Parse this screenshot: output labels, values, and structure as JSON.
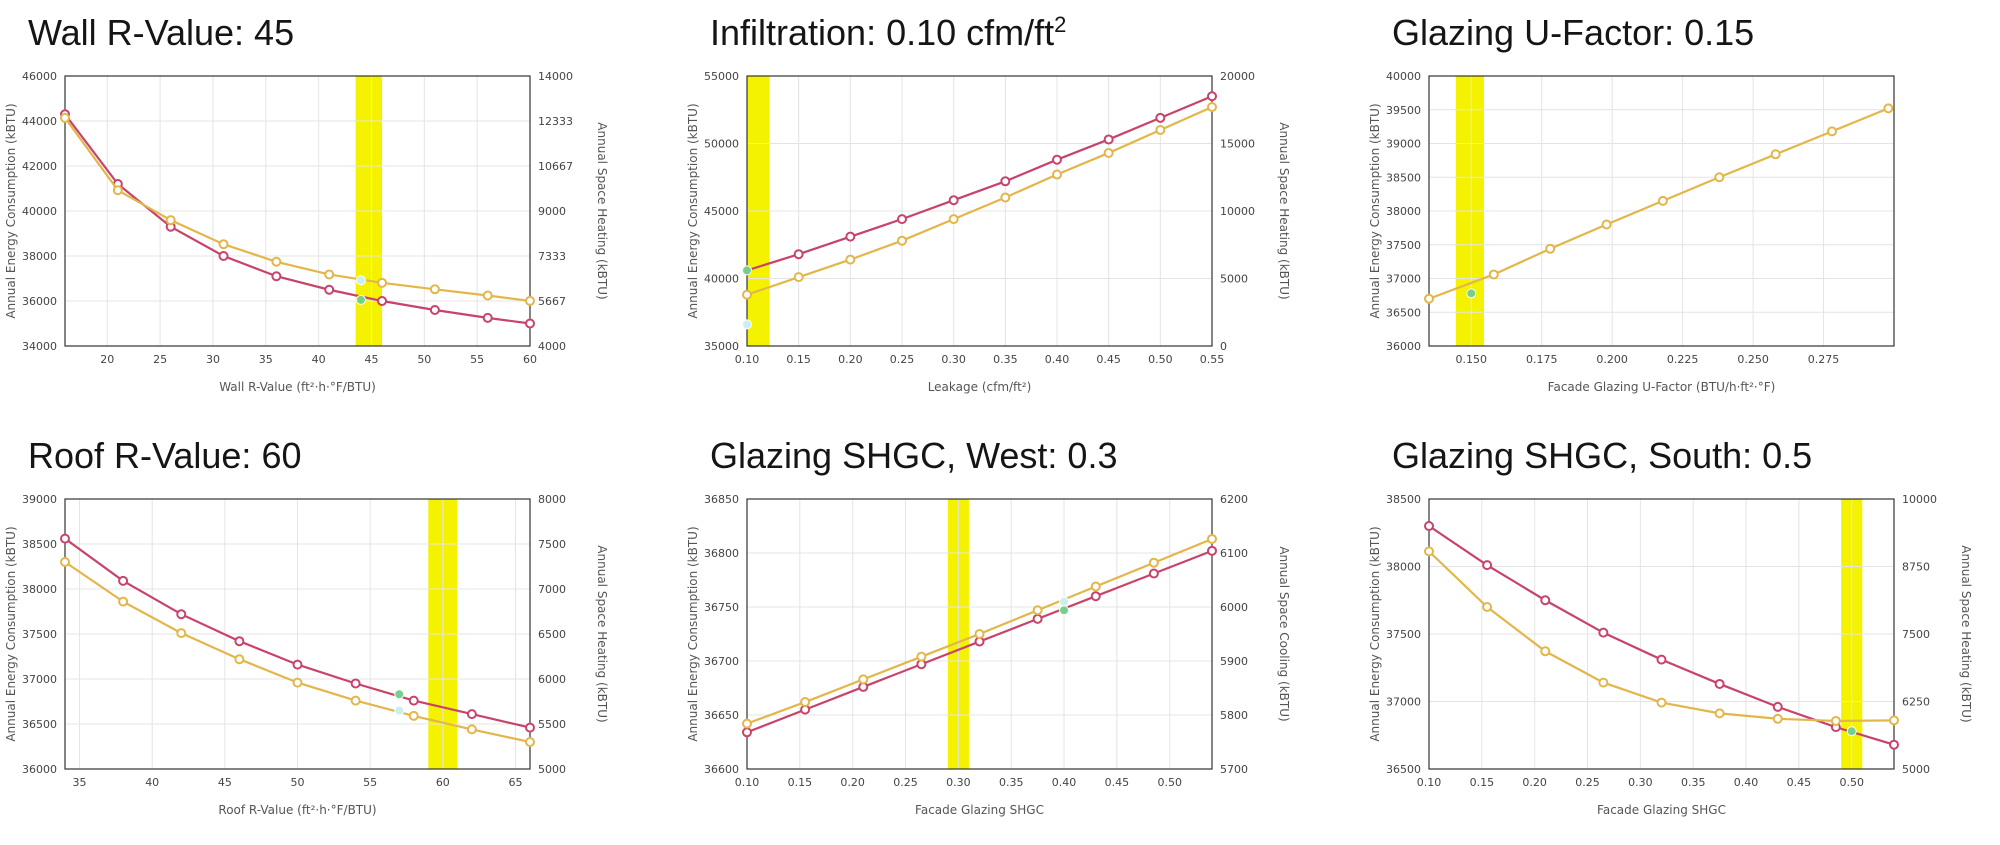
{
  "chart_data": [
    {
      "type": "line",
      "title": "Wall R-Value: 45",
      "xlabel": "Wall R-Value (ft²·h·°F/BTU)",
      "ylabel": "Annual Energy Consumption (kBTU)",
      "y2label": "Annual Space Heating (kBTU)",
      "xlim": [
        16,
        60
      ],
      "ylim": [
        34000,
        46000
      ],
      "y2lim": [
        4000,
        14000
      ],
      "x_ticks": [
        "20",
        "25",
        "30",
        "35",
        "40",
        "45",
        "50",
        "55",
        "60"
      ],
      "y_ticks": [
        "34000",
        "36000",
        "38000",
        "40000",
        "42000",
        "44000",
        "46000"
      ],
      "y2_ticks": [
        "4000",
        "5667",
        "7333",
        "9000",
        "10667",
        "12333",
        "14000"
      ],
      "highlight": [
        43.5,
        46
      ],
      "x": [
        16,
        21,
        26,
        31,
        36,
        41,
        46,
        51,
        56,
        60
      ],
      "series": [
        {
          "axis": "left",
          "color": "#c8436a",
          "values": [
            44300,
            41200,
            39300,
            38000,
            37100,
            36500,
            36000,
            35600,
            35250,
            35000
          ]
        },
        {
          "axis": "right",
          "color": "#e3b64a",
          "values": [
            12450,
            9770,
            8660,
            7770,
            7120,
            6650,
            6340,
            6100,
            5870,
            5670
          ]
        }
      ],
      "markers": [
        {
          "axis": "left",
          "x": 44,
          "y": 36050,
          "color": "#76d08a"
        },
        {
          "axis": "right",
          "x": 44,
          "y": 6430,
          "color": "#c9efef"
        }
      ]
    },
    {
      "type": "line",
      "title": "Infiltration: 0.10 cfm/ft",
      "title_sup": "2",
      "xlabel": "Leakage (cfm/ft²)",
      "ylabel": "Annual Energy Consumption (kBTU)",
      "y2label": "Annual Space Heating (kBTU)",
      "xlim": [
        0.1,
        0.55
      ],
      "ylim": [
        35000,
        55000
      ],
      "y2lim": [
        0,
        20000
      ],
      "x_ticks": [
        "0.10",
        "0.15",
        "0.20",
        "0.25",
        "0.30",
        "0.35",
        "0.40",
        "0.45",
        "0.50",
        "0.55"
      ],
      "y_ticks": [
        "35000",
        "40000",
        "45000",
        "50000",
        "55000"
      ],
      "y2_ticks": [
        "0",
        "5000",
        "10000",
        "15000",
        "20000"
      ],
      "highlight": [
        0.1,
        0.122
      ],
      "x": [
        0.1,
        0.15,
        0.2,
        0.25,
        0.3,
        0.35,
        0.4,
        0.45,
        0.5,
        0.55
      ],
      "series": [
        {
          "axis": "left",
          "color": "#c8436a",
          "values": [
            40600,
            41800,
            43100,
            44400,
            45800,
            47200,
            48800,
            50300,
            51900,
            53500
          ]
        },
        {
          "axis": "right",
          "color": "#e3b64a",
          "values": [
            3800,
            5100,
            6400,
            7800,
            9400,
            11000,
            12700,
            14300,
            16000,
            17700
          ]
        }
      ],
      "markers": [
        {
          "axis": "left",
          "x": 0.1,
          "y": 40600,
          "color": "#76d08a"
        },
        {
          "axis": "left",
          "x": 0.1,
          "y": 36600,
          "color": "#c9efef"
        }
      ]
    },
    {
      "type": "line",
      "title": "Glazing U-Factor: 0.15",
      "xlabel": "Facade Glazing U-Factor (BTU/h·ft²·°F)",
      "ylabel": "Annual Energy Consumption (kBTU)",
      "xlim": [
        0.135,
        0.3
      ],
      "ylim": [
        36000,
        40000
      ],
      "x_ticks": [
        "0.150",
        "0.175",
        "0.200",
        "0.225",
        "0.250",
        "0.275"
      ],
      "y_ticks": [
        "36000",
        "36500",
        "37000",
        "37500",
        "38000",
        "38500",
        "39000",
        "39500",
        "40000"
      ],
      "highlight": [
        0.1445,
        0.1545
      ],
      "x": [
        0.135,
        0.158,
        0.178,
        0.198,
        0.218,
        0.238,
        0.258,
        0.278,
        0.298
      ],
      "series": [
        {
          "axis": "left",
          "color": "#e3b64a",
          "values": [
            36700,
            37060,
            37440,
            37800,
            38150,
            38500,
            38840,
            39180,
            39520
          ]
        }
      ],
      "markers": [
        {
          "axis": "left",
          "x": 0.15,
          "y": 36780,
          "color": "#76d08a"
        }
      ]
    },
    {
      "type": "line",
      "title": "Roof R-Value: 60",
      "xlabel": "Roof R-Value (ft²·h·°F/BTU)",
      "ylabel": "Annual Energy Consumption (kBTU)",
      "y2label": "Annual Space Heating (kBTU)",
      "xlim": [
        34,
        66
      ],
      "ylim": [
        36000,
        39000
      ],
      "y2lim": [
        5000,
        8000
      ],
      "x_ticks": [
        "35",
        "40",
        "45",
        "50",
        "55",
        "60",
        "65"
      ],
      "y_ticks": [
        "36000",
        "36500",
        "37000",
        "37500",
        "38000",
        "38500",
        "39000"
      ],
      "y2_ticks": [
        "5000",
        "5500",
        "6000",
        "6500",
        "7000",
        "7500",
        "8000"
      ],
      "highlight": [
        59,
        61
      ],
      "x": [
        34,
        38,
        42,
        46,
        50,
        54,
        58,
        62,
        66
      ],
      "series": [
        {
          "axis": "left",
          "color": "#c8436a",
          "values": [
            38560,
            38090,
            37720,
            37420,
            37160,
            36950,
            36760,
            36610,
            36460
          ]
        },
        {
          "axis": "right",
          "color": "#e3b64a",
          "values": [
            7300,
            6860,
            6510,
            6220,
            5960,
            5760,
            5590,
            5440,
            5300
          ]
        }
      ],
      "markers": [
        {
          "axis": "left",
          "x": 57,
          "y": 36830,
          "color": "#76d08a"
        },
        {
          "axis": "right",
          "x": 57,
          "y": 5650,
          "color": "#c9efef"
        }
      ]
    },
    {
      "type": "line",
      "title": "Glazing SHGC, West: 0.3",
      "xlabel": "Facade Glazing SHGC",
      "ylabel": "Annual Energy Consumption (kBTU)",
      "y2label": "Annual Space Cooling (kBTU)",
      "xlim": [
        0.1,
        0.54
      ],
      "ylim": [
        36600,
        36850
      ],
      "y2lim": [
        5700,
        6200
      ],
      "x_ticks": [
        "0.10",
        "0.15",
        "0.20",
        "0.25",
        "0.30",
        "0.35",
        "0.40",
        "0.45",
        "0.50"
      ],
      "y_ticks": [
        "36600",
        "36650",
        "36700",
        "36750",
        "36800",
        "36850"
      ],
      "y2_ticks": [
        "5700",
        "5800",
        "5900",
        "6000",
        "6100",
        "6200"
      ],
      "highlight": [
        0.29,
        0.31
      ],
      "x": [
        0.1,
        0.155,
        0.21,
        0.265,
        0.32,
        0.375,
        0.43,
        0.485,
        0.54
      ],
      "series": [
        {
          "axis": "left",
          "color": "#c8436a",
          "values": [
            36634,
            36655,
            36676,
            36697,
            36718,
            36739,
            36760,
            36781,
            36802
          ]
        },
        {
          "axis": "right",
          "color": "#e3b64a",
          "values": [
            5784,
            5824,
            5866,
            5908,
            5950,
            5994,
            6038,
            6082,
            6126
          ]
        }
      ],
      "markers": [
        {
          "axis": "left",
          "x": 0.4,
          "y": 36747,
          "color": "#76d08a"
        },
        {
          "axis": "right",
          "x": 0.4,
          "y": 6010,
          "color": "#c9efef"
        }
      ]
    },
    {
      "type": "line",
      "title": "Glazing SHGC, South: 0.5",
      "xlabel": "Facade Glazing SHGC",
      "ylabel": "Annual Energy Consumption (kBTU)",
      "y2label": "Annual Space Heating (kBTU)",
      "xlim": [
        0.1,
        0.54
      ],
      "ylim": [
        36500,
        38500
      ],
      "y2lim": [
        5000,
        10000
      ],
      "x_ticks": [
        "0.10",
        "0.15",
        "0.20",
        "0.25",
        "0.30",
        "0.35",
        "0.40",
        "0.45",
        "0.50"
      ],
      "y_ticks": [
        "36500",
        "37000",
        "37500",
        "38000",
        "38500"
      ],
      "y2_ticks": [
        "5000",
        "6250",
        "7500",
        "8750",
        "10000"
      ],
      "highlight": [
        0.49,
        0.51
      ],
      "x": [
        0.1,
        0.155,
        0.21,
        0.265,
        0.32,
        0.375,
        0.43,
        0.485,
        0.54
      ],
      "series": [
        {
          "axis": "left",
          "color": "#c8436a",
          "values": [
            38300,
            38010,
            37750,
            37510,
            37310,
            37130,
            36960,
            36810,
            36680
          ]
        },
        {
          "axis": "right",
          "color": "#e3b64a",
          "values": [
            9030,
            8000,
            7180,
            6600,
            6230,
            6030,
            5930,
            5890,
            5900
          ]
        }
      ],
      "markers": [
        {
          "axis": "left",
          "x": 0.5,
          "y": 36780,
          "color": "#76d08a"
        }
      ]
    }
  ]
}
